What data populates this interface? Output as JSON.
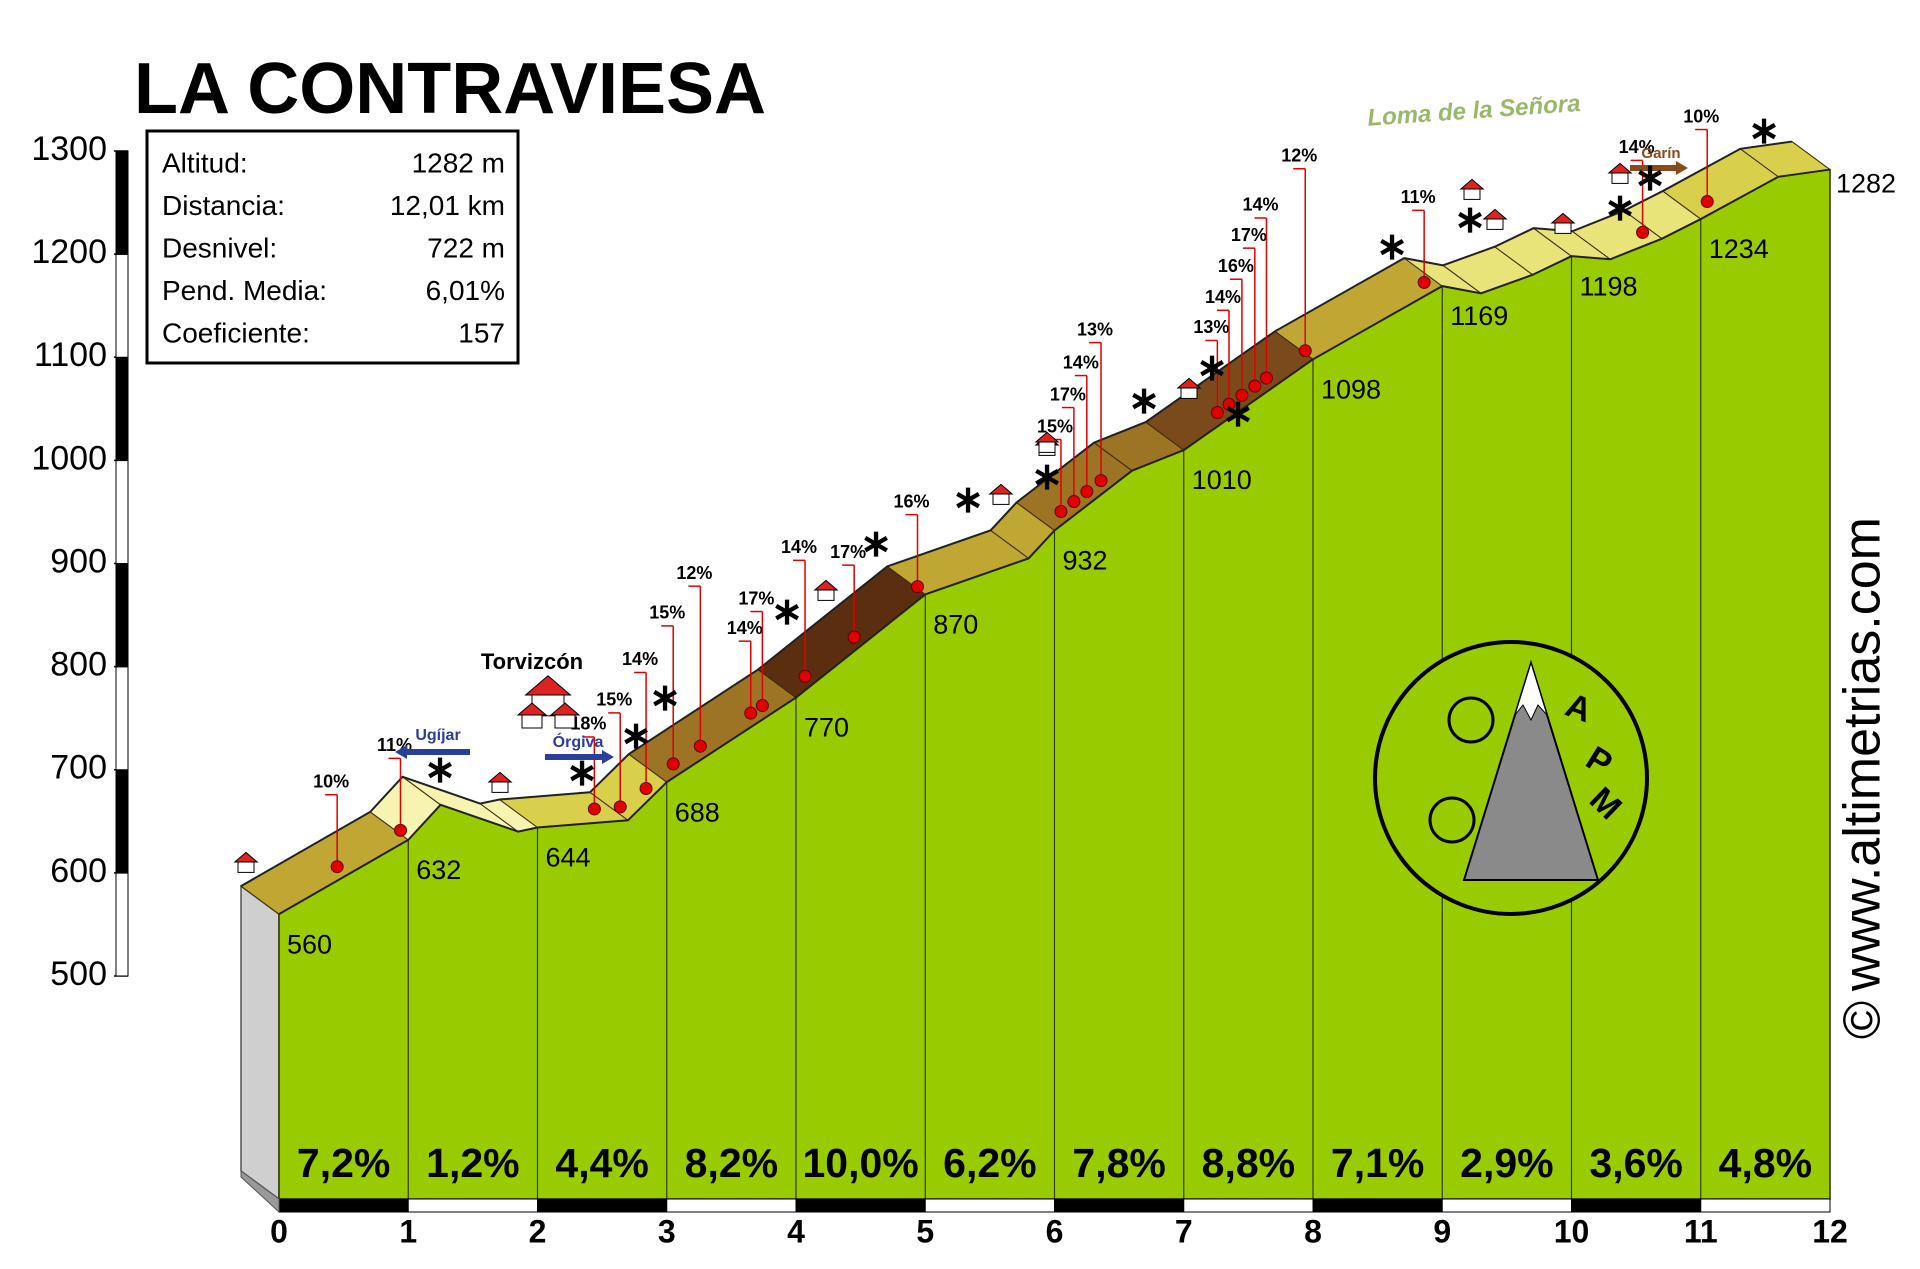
{
  "chart_data": {
    "type": "elevation-profile",
    "title": "LA CONTRAVIESA",
    "info": [
      {
        "label": "Altitud:",
        "value": "1282 m"
      },
      {
        "label": "Distancia:",
        "value": "12,01 km"
      },
      {
        "label": "Desnivel:",
        "value": "722 m"
      },
      {
        "label": "Pend. Media:",
        "value": "6,01%"
      },
      {
        "label": "Coeficiente:",
        "value": "157"
      }
    ],
    "x": [
      0,
      1,
      1.25,
      1.85,
      2,
      2.7,
      3,
      4,
      5,
      5.8,
      6,
      6.6,
      7,
      8,
      9,
      9.3,
      9.7,
      10,
      10.3,
      10.7,
      11,
      11.6,
      12
    ],
    "values": [
      560,
      632,
      666,
      640,
      644,
      651,
      688,
      770,
      870,
      905,
      932,
      990,
      1010,
      1098,
      1169,
      1162,
      1180,
      1198,
      1195,
      1215,
      1234,
      1275,
      1282
    ],
    "xlim": [
      0,
      12
    ],
    "xticks": [
      0,
      1,
      2,
      3,
      4,
      5,
      6,
      7,
      8,
      9,
      10,
      11,
      12
    ],
    "ylim": [
      500,
      1300
    ],
    "yticks": [
      500,
      600,
      700,
      800,
      900,
      1000,
      1100,
      1200,
      1300
    ],
    "segments": {
      "values": [
        7.2,
        1.2,
        4.4,
        8.2,
        10.0,
        6.2,
        7.8,
        8.8,
        7.1,
        2.9,
        3.6,
        4.8
      ],
      "value_labels": [
        "7,2%",
        "1,2%",
        "4,4%",
        "8,2%",
        "10,0%",
        "6,2%",
        "7,8%",
        "8,8%",
        "7,1%",
        "2,9%",
        "3,6%",
        "4,8%"
      ]
    },
    "ramps": {
      "x": [
        0.45,
        0.94,
        2.44,
        2.64,
        2.84,
        3.05,
        3.26,
        3.65,
        3.74,
        4.07,
        4.45,
        4.94,
        6.05,
        6.15,
        6.25,
        6.36,
        7.26,
        7.35,
        7.45,
        7.55,
        7.64,
        7.94,
        8.86,
        10.55,
        11.05
      ],
      "values": [
        10,
        11,
        18,
        15,
        14,
        15,
        12,
        14,
        17,
        14,
        17,
        16,
        15,
        17,
        14,
        13,
        13,
        14,
        16,
        17,
        14,
        12,
        11,
        14,
        10
      ],
      "value_labels": [
        "10%",
        "11%",
        "18%",
        "15%",
        "14%",
        "15%",
        "12%",
        "14%",
        "17%",
        "14%",
        "17%",
        "16%",
        "15%",
        "17%",
        "14%",
        "13%",
        "13%",
        "14%",
        "16%",
        "17%",
        "14%",
        "12%",
        "11%",
        "14%",
        "10%"
      ]
    },
    "annotations": {
      "town": "Torvizcón",
      "peak": "Loma de la Señora",
      "ugijar": "Ugíjar",
      "orgiva": "Órgiva",
      "garin": "Garín"
    },
    "logo": [
      "A",
      "P",
      "M"
    ],
    "website": "www.altimetrias.com",
    "copyright": "©",
    "colors": {
      "area": "#99cc00",
      "ramp_dot": "#e00000",
      "leader": "#e00000"
    }
  }
}
